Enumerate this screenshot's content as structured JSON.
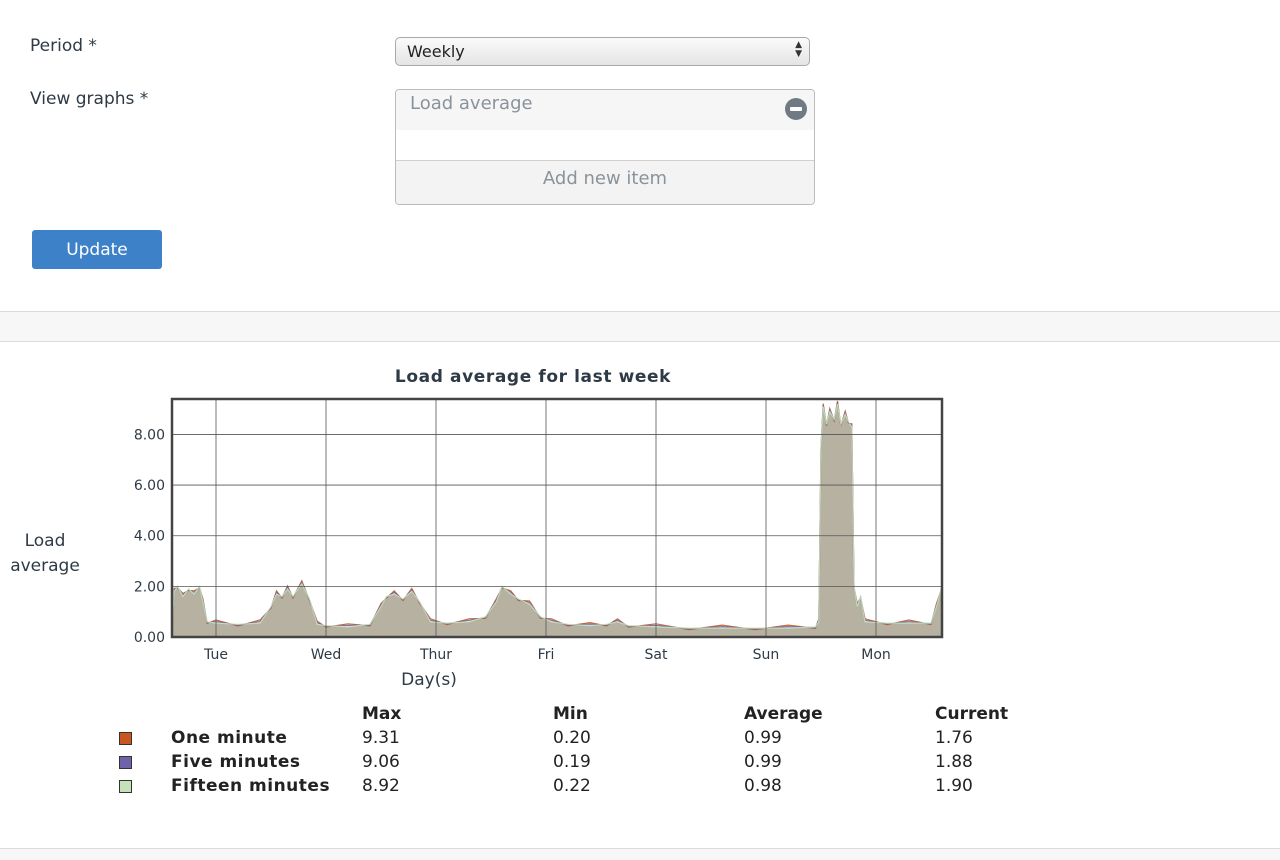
{
  "form": {
    "period_label": "Period *",
    "period_value": "Weekly",
    "graphs_label": "View graphs *",
    "graphs_items": [
      "Load average"
    ],
    "add_item_label": "Add new item",
    "update_label": "Update"
  },
  "chart_data": {
    "type": "area",
    "title": "Load average for last week",
    "xlabel": "Day(s)",
    "ylabel": "Load average",
    "x_ticks": [
      "Tue",
      "Wed",
      "Thur",
      "Fri",
      "Sat",
      "Sun",
      "Mon"
    ],
    "y_ticks": [
      "0.00",
      "2.00",
      "4.00",
      "6.00",
      "8.00"
    ],
    "ylim": [
      0,
      9.4
    ],
    "grid": true,
    "series": [
      {
        "name": "One minute",
        "color": "#c8561e"
      },
      {
        "name": "Five minutes",
        "color": "#6c63a8"
      },
      {
        "name": "Fifteen minutes",
        "color": "#c4e2b9"
      }
    ],
    "profile_days": [
      -0.4,
      6.6
    ],
    "profile": [
      [
        -0.4,
        0.4
      ],
      [
        -0.38,
        1.8
      ],
      [
        -0.35,
        2.0
      ],
      [
        -0.3,
        1.6
      ],
      [
        -0.25,
        1.9
      ],
      [
        -0.2,
        1.7
      ],
      [
        -0.15,
        2.0
      ],
      [
        -0.12,
        1.4
      ],
      [
        -0.08,
        0.6
      ],
      [
        0.0,
        0.55
      ],
      [
        0.2,
        0.5
      ],
      [
        0.4,
        0.55
      ],
      [
        0.5,
        1.2
      ],
      [
        0.55,
        1.7
      ],
      [
        0.6,
        1.6
      ],
      [
        0.65,
        1.9
      ],
      [
        0.7,
        1.6
      ],
      [
        0.78,
        2.1
      ],
      [
        0.85,
        1.5
      ],
      [
        0.92,
        0.5
      ],
      [
        1.0,
        0.45
      ],
      [
        1.2,
        0.4
      ],
      [
        1.4,
        0.5
      ],
      [
        1.5,
        1.2
      ],
      [
        1.55,
        1.6
      ],
      [
        1.62,
        1.7
      ],
      [
        1.7,
        1.5
      ],
      [
        1.78,
        1.8
      ],
      [
        1.85,
        1.4
      ],
      [
        1.95,
        0.6
      ],
      [
        2.1,
        0.55
      ],
      [
        2.3,
        0.6
      ],
      [
        2.45,
        0.8
      ],
      [
        2.55,
        1.4
      ],
      [
        2.6,
        2.0
      ],
      [
        2.68,
        1.7
      ],
      [
        2.75,
        1.5
      ],
      [
        2.85,
        1.3
      ],
      [
        2.95,
        0.8
      ],
      [
        3.05,
        0.6
      ],
      [
        3.2,
        0.5
      ],
      [
        3.4,
        0.45
      ],
      [
        3.55,
        0.5
      ],
      [
        3.65,
        0.6
      ],
      [
        3.75,
        0.45
      ],
      [
        4.0,
        0.4
      ],
      [
        4.3,
        0.35
      ],
      [
        4.6,
        0.35
      ],
      [
        4.9,
        0.35
      ],
      [
        5.2,
        0.35
      ],
      [
        5.45,
        0.4
      ],
      [
        5.48,
        0.6
      ],
      [
        5.5,
        7.5
      ],
      [
        5.52,
        9.1
      ],
      [
        5.55,
        8.4
      ],
      [
        5.58,
        8.9
      ],
      [
        5.62,
        8.6
      ],
      [
        5.65,
        9.2
      ],
      [
        5.68,
        8.4
      ],
      [
        5.72,
        8.8
      ],
      [
        5.75,
        8.5
      ],
      [
        5.78,
        8.3
      ],
      [
        5.8,
        2.0
      ],
      [
        5.83,
        1.2
      ],
      [
        5.86,
        1.6
      ],
      [
        5.9,
        0.6
      ],
      [
        6.1,
        0.55
      ],
      [
        6.3,
        0.55
      ],
      [
        6.5,
        0.55
      ],
      [
        6.55,
        1.2
      ],
      [
        6.6,
        2.0
      ]
    ]
  },
  "legend_table": {
    "headers": [
      "Max",
      "Min",
      "Average",
      "Current"
    ],
    "rows": [
      {
        "name": "One minute",
        "color": "#c8561e",
        "values": [
          "9.31",
          "0.20",
          "0.99",
          "1.76"
        ]
      },
      {
        "name": "Five minutes",
        "color": "#6c63a8",
        "values": [
          "9.06",
          "0.19",
          "0.99",
          "1.88"
        ]
      },
      {
        "name": "Fifteen minutes",
        "color": "#c4e2b9",
        "values": [
          "8.92",
          "0.22",
          "0.98",
          "1.90"
        ]
      }
    ]
  }
}
